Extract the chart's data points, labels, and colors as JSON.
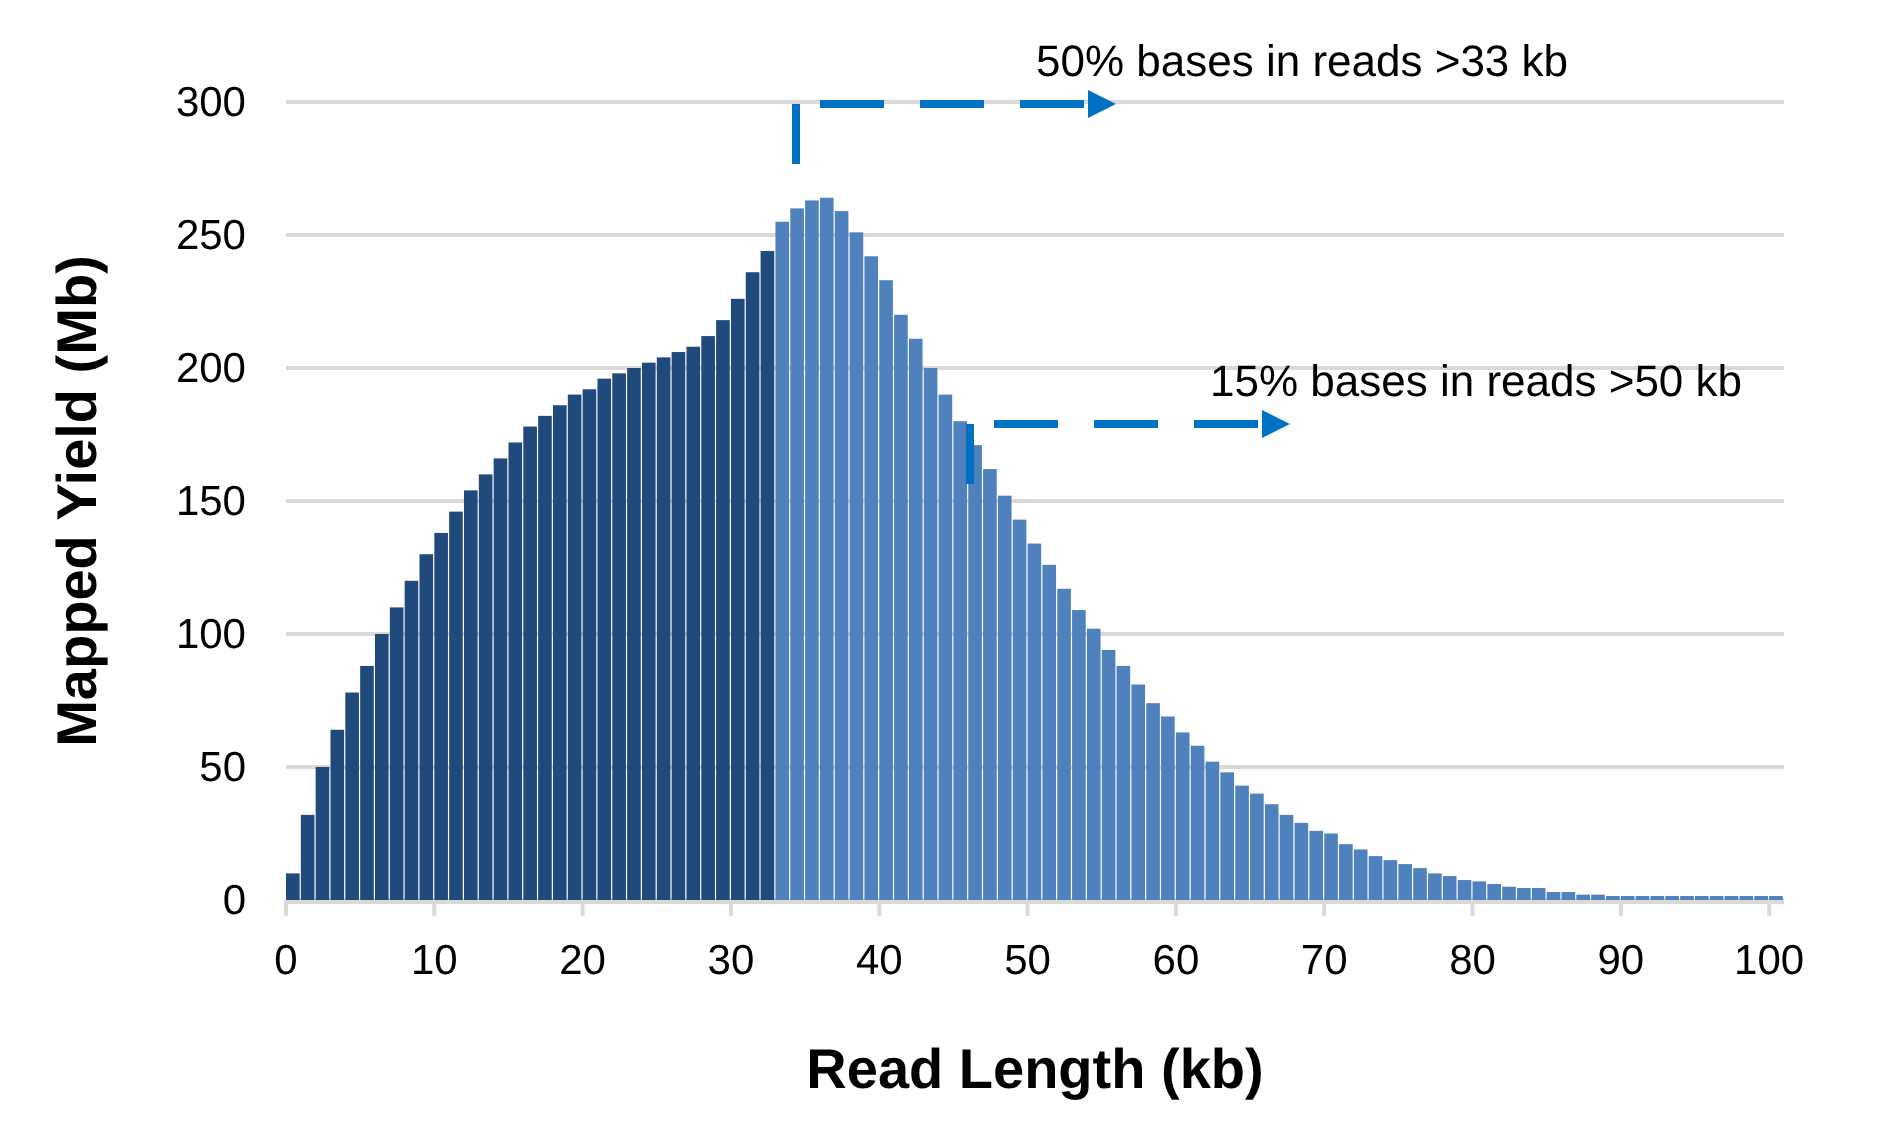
{
  "chart_data": {
    "type": "histogram",
    "xlabel": "Read Length (kb)",
    "ylabel": "Mapped Yield (Mb)",
    "bins": [
      0,
      1,
      2,
      3,
      4,
      5,
      6,
      7,
      8,
      9,
      10,
      11,
      12,
      13,
      14,
      15,
      16,
      17,
      18,
      19,
      20,
      21,
      22,
      23,
      24,
      25,
      26,
      27,
      28,
      29,
      30,
      31,
      32,
      33,
      34,
      35,
      36,
      37,
      38,
      39,
      40,
      41,
      42,
      43,
      44,
      45,
      46,
      47,
      48,
      49,
      50,
      51,
      52,
      53,
      54,
      55,
      56,
      57,
      58,
      59,
      60,
      61,
      62,
      63,
      64,
      65,
      66,
      67,
      68,
      69,
      70,
      71,
      72,
      73,
      74,
      75,
      76,
      77,
      78,
      79,
      80,
      81,
      82,
      83,
      84,
      85,
      86,
      87,
      88,
      89,
      90,
      91,
      92,
      93,
      94,
      95,
      96,
      97,
      98,
      99,
      100,
      101
    ],
    "values": [
      10,
      32,
      50,
      64,
      78,
      88,
      100,
      110,
      120,
      130,
      138,
      146,
      154,
      160,
      166,
      172,
      178,
      182,
      186,
      190,
      192,
      196,
      198,
      200,
      202,
      204,
      206,
      208,
      212,
      218,
      226,
      236,
      244,
      255,
      260,
      263,
      264,
      259,
      251,
      242,
      233,
      220,
      211,
      200,
      190,
      180,
      171,
      162,
      152,
      143,
      134,
      126,
      117,
      109,
      102,
      94,
      88,
      81,
      74,
      69,
      63,
      58,
      52,
      48,
      43,
      40,
      36,
      32,
      29,
      26,
      25,
      21,
      19,
      16.5,
      15,
      13.5,
      12,
      10,
      9,
      7.5,
      7,
      6,
      5,
      4.5,
      4.5,
      3,
      3,
      2,
      2,
      1.5,
      1.5,
      1.5,
      1.5,
      1.5,
      1.5,
      1.5,
      1.5,
      1.5,
      1.5,
      1.5,
      1.5
    ],
    "colors": [
      "#214a7c",
      "#214a7c",
      "#214a7c",
      "#214a7c",
      "#214a7c",
      "#214a7c",
      "#214a7c",
      "#214a7c",
      "#214a7c",
      "#214a7c",
      "#214a7c",
      "#214a7c",
      "#214a7c",
      "#214a7c",
      "#214a7c",
      "#214a7c",
      "#214a7c",
      "#214a7c",
      "#214a7c",
      "#214a7c",
      "#214a7c",
      "#214a7c",
      "#214a7c",
      "#214a7c",
      "#214a7c",
      "#214a7c",
      "#214a7c",
      "#214a7c",
      "#214a7c",
      "#214a7c",
      "#214a7c",
      "#214a7c",
      "#214a7c",
      "#4f81bd",
      "#4f81bd",
      "#4f81bd",
      "#4f81bd",
      "#4f81bd",
      "#4f81bd",
      "#4f81bd",
      "#4f81bd",
      "#4f81bd",
      "#4f81bd",
      "#4f81bd",
      "#4f81bd",
      "#4f81bd",
      "#4f81bd",
      "#4f81bd",
      "#4f81bd",
      "#4f81bd",
      "#4f81bd",
      "#4f81bd",
      "#4f81bd",
      "#4f81bd",
      "#4f81bd",
      "#4f81bd",
      "#4f81bd",
      "#4f81bd",
      "#4f81bd",
      "#4f81bd",
      "#4f81bd",
      "#4f81bd",
      "#4f81bd",
      "#4f81bd",
      "#4f81bd",
      "#4f81bd",
      "#4f81bd",
      "#4f81bd",
      "#4f81bd",
      "#4f81bd",
      "#4f81bd",
      "#4f81bd",
      "#4f81bd",
      "#4f81bd",
      "#4f81bd",
      "#4f81bd",
      "#4f81bd",
      "#4f81bd",
      "#4f81bd",
      "#4f81bd",
      "#4f81bd",
      "#4f81bd",
      "#4f81bd",
      "#4f81bd",
      "#4f81bd",
      "#4f81bd",
      "#4f81bd",
      "#4f81bd",
      "#4f81bd",
      "#4f81bd",
      "#4f81bd",
      "#4f81bd",
      "#4f81bd",
      "#4f81bd",
      "#4f81bd",
      "#4f81bd",
      "#4f81bd",
      "#4f81bd",
      "#4f81bd",
      "#4f81bd",
      "#4f81bd"
    ],
    "xlim": [
      0,
      101
    ],
    "xticks": [
      0,
      10,
      20,
      30,
      40,
      50,
      60,
      70,
      80,
      90,
      100
    ],
    "ylim": [
      0,
      300
    ],
    "yticks": [
      0,
      50,
      100,
      150,
      200,
      250,
      300
    ],
    "grid": "y",
    "annotations": [
      "50% bases in reads >33 kb",
      "15% bases in reads >50 kb"
    ]
  }
}
